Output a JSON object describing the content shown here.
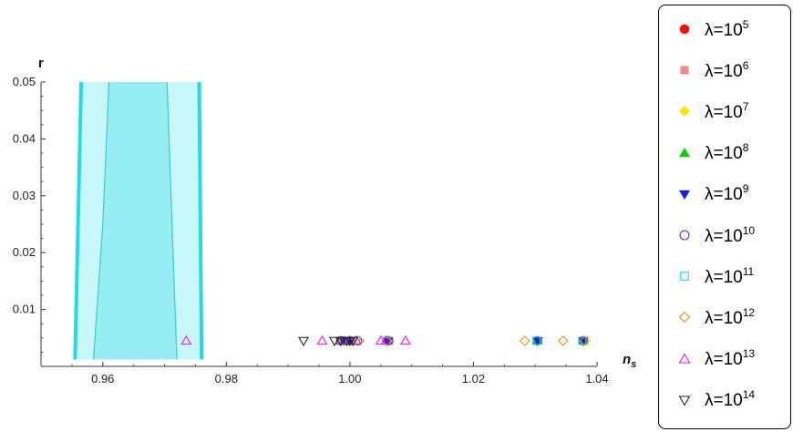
{
  "chart_data": {
    "type": "scatter",
    "xlabel": "n",
    "xlabel_sub": "s",
    "ylabel": "r",
    "xlim": [
      0.95,
      1.04
    ],
    "ylim": [
      0.0,
      0.05
    ],
    "x_ticks": [
      0.96,
      0.98,
      1.0,
      1.02,
      1.04
    ],
    "x_tick_labels": [
      "0.96",
      "0.98",
      "1.00",
      "1.02",
      "1.04"
    ],
    "y_ticks": [
      0.01,
      0.02,
      0.03,
      0.04,
      0.05
    ],
    "y_tick_labels": [
      "0.01",
      "0.02",
      "0.03",
      "0.04",
      "0.05"
    ],
    "regions": [
      {
        "level": "outer",
        "color": "#c8f7f9",
        "edge_color": "#22dbe6",
        "left_edge": [
          [
            0.9555,
            0.0012
          ],
          [
            0.9565,
            0.05
          ]
        ],
        "right_edge": [
          [
            0.976,
            0.0012
          ],
          [
            0.9756,
            0.05
          ]
        ]
      },
      {
        "level": "inner",
        "color": "#97eef2",
        "edge_color": "#3cc8cf",
        "left_edge": [
          [
            0.9585,
            0.0012
          ],
          [
            0.96,
            0.025
          ],
          [
            0.961,
            0.05
          ]
        ],
        "right_edge": [
          [
            0.972,
            0.0012
          ],
          [
            0.9712,
            0.025
          ],
          [
            0.9704,
            0.05
          ]
        ]
      }
    ],
    "series": [
      {
        "name": "λ=10",
        "exp": "5",
        "marker": "circle-filled",
        "color": "#ee1111",
        "x": [
          0.999,
          1.0,
          1.0062,
          1.0304,
          1.0378
        ],
        "y": [
          0.0045,
          0.0045,
          0.0045,
          0.0045,
          0.0045
        ]
      },
      {
        "name": "λ=10",
        "exp": "6",
        "marker": "square-filled",
        "color": "#f08c8c",
        "x": [
          0.999,
          1.0,
          1.0062,
          1.0304,
          1.0378
        ],
        "y": [
          0.0045,
          0.0045,
          0.0045,
          0.0045,
          0.0045
        ]
      },
      {
        "name": "λ=10",
        "exp": "7",
        "marker": "diamond-filled",
        "color": "#f5e600",
        "x": [
          0.999,
          1.0,
          1.0062,
          1.0304,
          1.0378
        ],
        "y": [
          0.0045,
          0.0045,
          0.0045,
          0.0045,
          0.0045
        ]
      },
      {
        "name": "λ=10",
        "exp": "8",
        "marker": "triangle-up-filled",
        "color": "#11cc11",
        "x": [
          0.999,
          1.0,
          1.0062,
          1.0304,
          1.0378
        ],
        "y": [
          0.0045,
          0.0045,
          0.0045,
          0.0045,
          0.0045
        ]
      },
      {
        "name": "λ=10",
        "exp": "9",
        "marker": "triangle-down-filled",
        "color": "#1a1adf",
        "x": [
          0.999,
          1.0,
          1.0062,
          1.0304,
          1.0378
        ],
        "y": [
          0.0045,
          0.0045,
          0.0045,
          0.0045,
          0.0045
        ]
      },
      {
        "name": "λ=10",
        "exp": "10",
        "marker": "circle-open",
        "color": "#7b1fa2",
        "x": [
          0.9985,
          1.0012,
          1.0063,
          1.0303,
          1.0377
        ],
        "y": [
          0.0045,
          0.0045,
          0.0045,
          0.0045,
          0.0045
        ]
      },
      {
        "name": "λ=10",
        "exp": "11",
        "marker": "square-open",
        "color": "#19d3de",
        "x": [
          0.9988,
          1.001,
          1.006,
          1.0302,
          1.0376
        ],
        "y": [
          0.0045,
          0.0045,
          0.0045,
          0.0045,
          0.0045
        ]
      },
      {
        "name": "λ=10",
        "exp": "12",
        "marker": "diamond-open",
        "color": "#f08c1e",
        "x": [
          1.0015,
          1.006,
          1.0283,
          1.0345,
          1.038
        ],
        "y": [
          0.0045,
          0.0045,
          0.0045,
          0.0045,
          0.0045
        ]
      },
      {
        "name": "λ=10",
        "exp": "13",
        "marker": "triangle-up-open",
        "color": "#e020d8",
        "x": [
          0.9735,
          0.9955,
          0.9985,
          1.0,
          1.001,
          1.005,
          1.0058,
          1.009
        ],
        "y": [
          0.0045,
          0.0045,
          0.0045,
          0.0045,
          0.0045,
          0.0045,
          0.0045,
          0.0045
        ]
      },
      {
        "name": "λ=10",
        "exp": "14",
        "marker": "triangle-down-open",
        "color": "#222222",
        "x": [
          0.9925,
          0.9975,
          0.9985,
          0.9995,
          1.0,
          1.0005
        ],
        "y": [
          0.0045,
          0.0045,
          0.0045,
          0.0045,
          0.0045,
          0.0045
        ]
      }
    ]
  }
}
